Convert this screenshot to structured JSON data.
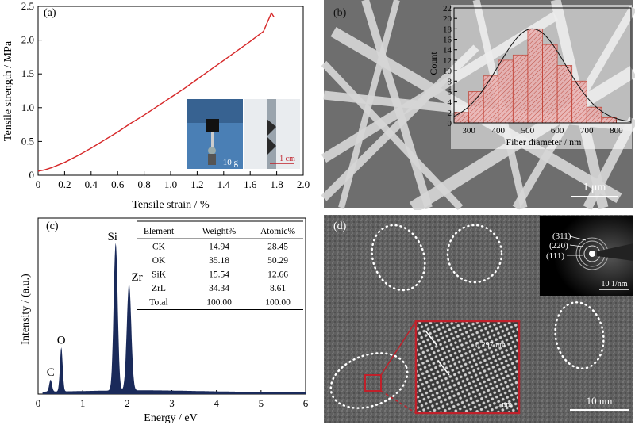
{
  "chart_data": [
    {
      "panel": "(a)",
      "type": "line",
      "xlabel": "Tensile strain / %",
      "ylabel": "Tensile strength / MPa",
      "xlim": [
        0,
        2.0
      ],
      "ylim": [
        0,
        2.5
      ],
      "xticks": [
        "0",
        "0.2",
        "0.4",
        "0.6",
        "0.8",
        "1.0",
        "1.2",
        "1.4",
        "1.6",
        "1.8",
        "2.0"
      ],
      "yticks": [
        "0",
        "0.5",
        "1.0",
        "1.5",
        "2.0",
        "2.5"
      ],
      "series": [
        {
          "color": "#d62728",
          "x": [
            0,
            0.05,
            0.1,
            0.15,
            0.2,
            0.3,
            0.4,
            0.5,
            0.6,
            0.7,
            0.8,
            0.9,
            1.0,
            1.1,
            1.2,
            1.3,
            1.4,
            1.5,
            1.6,
            1.7,
            1.76,
            1.78
          ],
          "y": [
            0.06,
            0.08,
            0.11,
            0.15,
            0.19,
            0.29,
            0.4,
            0.52,
            0.64,
            0.77,
            0.89,
            1.02,
            1.15,
            1.28,
            1.42,
            1.56,
            1.7,
            1.84,
            1.98,
            2.13,
            2.4,
            2.34
          ]
        }
      ],
      "inset": {
        "label_weight": "10 g",
        "label_scale": "1 cm"
      }
    },
    {
      "panel": "(b)",
      "type": "bar",
      "xlabel": "Fiber diameter / nm",
      "ylabel": "Count",
      "xlim": [
        250,
        850
      ],
      "ylim": [
        0,
        22
      ],
      "xticks": [
        "300",
        "400",
        "500",
        "600",
        "700",
        "800"
      ],
      "yticks": [
        "0",
        "2",
        "4",
        "6",
        "8",
        "10",
        "12",
        "14",
        "16",
        "18",
        "20",
        "22"
      ],
      "bin_centers": [
        275,
        325,
        375,
        425,
        475,
        525,
        575,
        625,
        675,
        725,
        775
      ],
      "values": [
        2,
        6,
        9,
        12,
        13,
        18,
        15,
        11,
        8,
        3,
        1
      ],
      "fit": {
        "type": "gaussian",
        "mean": 515,
        "sigma": 115,
        "peak": 18
      },
      "scale_bar": "1 μm"
    },
    {
      "panel": "(c)",
      "type": "area",
      "xlabel": "Energy / eV",
      "ylabel": "Intensity / (a.u.)",
      "xlim": [
        0,
        6
      ],
      "xticks": [
        "0",
        "1",
        "2",
        "3",
        "4",
        "5",
        "6"
      ],
      "color": "#1a2a5a",
      "peaks": [
        {
          "label": "C",
          "x": 0.28,
          "height": 0.07
        },
        {
          "label": "O",
          "x": 0.52,
          "height": 0.26
        },
        {
          "label": "Si",
          "x": 1.74,
          "height": 0.87
        },
        {
          "label": "Zr",
          "x": 2.04,
          "height": 0.63
        }
      ],
      "table": {
        "headers": [
          "Element",
          "Weight%",
          "Atomic%"
        ],
        "rows": [
          [
            "CK",
            "14.94",
            "28.45"
          ],
          [
            "OK",
            "35.18",
            "50.29"
          ],
          [
            "SiK",
            "15.54",
            "12.66"
          ],
          [
            "ZrL",
            "34.34",
            "8.61"
          ],
          [
            "Total",
            "100.00",
            "100.00"
          ]
        ]
      }
    },
    {
      "panel": "(d)",
      "type": "image",
      "saed_rings": [
        "(311)",
        "(220)",
        "(111)"
      ],
      "saed_scale": "10 1/nm",
      "lattice_spacing": "0.297 nm",
      "inset_scale": "1 nm",
      "scale_bar": "10 nm"
    }
  ],
  "colors": {
    "line_red": "#d62728",
    "bar_fill": "#e8a0a0",
    "bar_edge": "#c0392b",
    "eds_fill": "#1a2a5a",
    "inset_border": "#c0202a"
  }
}
